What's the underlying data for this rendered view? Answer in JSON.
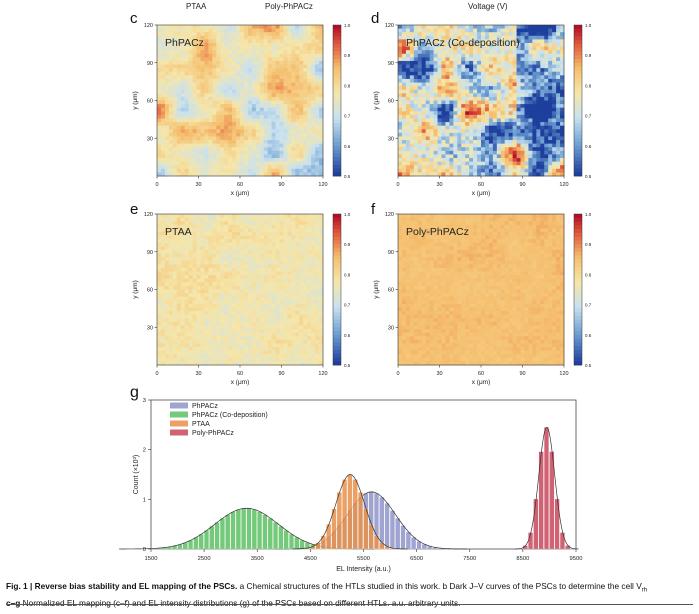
{
  "top_labels": [
    "PTAA",
    "Poly-PhPACz",
    "Voltage (V)"
  ],
  "maps": [
    {
      "letter": "c",
      "title": "PhPACz",
      "style": "mixed"
    },
    {
      "letter": "d",
      "title": "PhPACz (Co-deposition)",
      "style": "noisy"
    },
    {
      "letter": "e",
      "title": "PTAA",
      "style": "pale"
    },
    {
      "letter": "f",
      "title": "Poly-PhPACz",
      "style": "uniform"
    }
  ],
  "map_axes": {
    "xlabel": "x (μm)",
    "ylabel": "y (μm)",
    "ticks": [
      "0",
      "30",
      "60",
      "90",
      "120"
    ],
    "colorbar_ticks": [
      "1.0",
      "0.9",
      "0.8",
      "0.7",
      "0.6",
      "0.5"
    ]
  },
  "colors": {
    "high": "#c8102e",
    "mid": "#f5d78a",
    "low": "#1f3f9e"
  },
  "chart_data": {
    "type": "bar",
    "panel_letter": "g",
    "xlabel": "EL Intensity (a.u.)",
    "ylabel": "Count (×10³)",
    "xlim": [
      1500,
      9500
    ],
    "ylim": [
      0,
      3
    ],
    "xticks": [
      "1500",
      "2500",
      "3500",
      "4500",
      "5500",
      "6500",
      "7500",
      "8500",
      "9500"
    ],
    "yticks": [
      "0",
      "1",
      "2",
      "3"
    ],
    "bin_width": 100,
    "legend_position": "top-left",
    "series": [
      {
        "name": "PhPACz",
        "color": "#8e94c9",
        "peak_x": 5650,
        "peak_y": 1.15,
        "sigma": 450
      },
      {
        "name": "PhPACz (Co-deposition)",
        "color": "#5cbf63",
        "peak_x": 3300,
        "peak_y": 0.82,
        "sigma": 600
      },
      {
        "name": "PTAA",
        "color": "#e8904a",
        "peak_x": 5250,
        "peak_y": 1.5,
        "sigma": 270
      },
      {
        "name": "Poly-PhPACz",
        "color": "#c9475c",
        "peak_x": 8950,
        "peak_y": 2.45,
        "sigma": 150
      }
    ]
  },
  "caption": {
    "line1_bold": "Fig. 1 | Reverse bias stability and EL mapping of the PSCs.",
    "line1_rest": " a Chemical structures of the HTLs studied in this work. b Dark J–V curves of the PSCs to determine the cell V",
    "sub": "rh",
    "line2_bold": "c–g",
    "line2_rest": " Normalized EL mapping (c–f) and EL intensity distributions (g) of the PSCs based on different HTLs. a.u. arbitrary units."
  }
}
